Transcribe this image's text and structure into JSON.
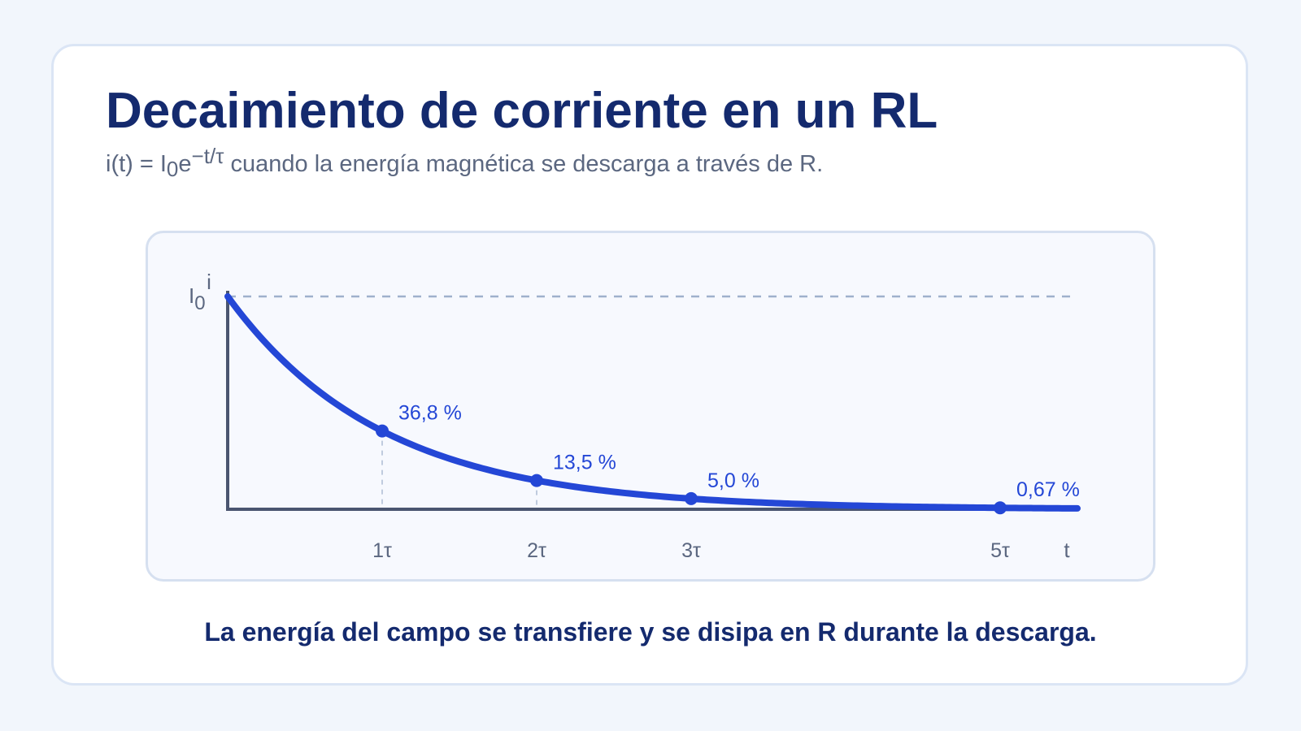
{
  "title": "Decaimiento de corriente en un RL",
  "subtitle": {
    "prefix": "i(t) = I",
    "sub": "0",
    "base": "e",
    "exponent": "−t/τ",
    "rest": " cuando la energía magnética se descarga a través de R."
  },
  "caption": "La energía del campo se transfiere y se disipa en R durante la descarga.",
  "colors": {
    "title": "#142a6e",
    "curve": "#2447d6",
    "axis": "#4a5570",
    "reference_line": "#9fb1cc",
    "tick_text": "#5b6780"
  },
  "chart_data": {
    "type": "line",
    "xlabel": "t",
    "ylabel": "i",
    "y_reference": {
      "label_base": "I",
      "label_sub": "0",
      "value": 1.0,
      "style": "dashed"
    },
    "xlim": [
      0,
      5.5
    ],
    "ylim": [
      0,
      1.0
    ],
    "series": [
      {
        "function": "exp(-x)",
        "x_range": [
          0,
          5.5
        ]
      }
    ],
    "x_ticks": [
      {
        "value": 1,
        "label": "1τ"
      },
      {
        "value": 2,
        "label": "2τ"
      },
      {
        "value": 3,
        "label": "3τ"
      },
      {
        "value": 5,
        "label": "5τ"
      }
    ],
    "points": [
      {
        "x": 1,
        "y": 0.368,
        "label": "36,8 %",
        "guide": true
      },
      {
        "x": 2,
        "y": 0.135,
        "label": "13,5 %",
        "guide": true
      },
      {
        "x": 3,
        "y": 0.05,
        "label": "5,0 %",
        "guide": false
      },
      {
        "x": 5,
        "y": 0.0067,
        "label": "0,67 %",
        "guide": false
      }
    ],
    "grid": false,
    "legend": "none"
  }
}
